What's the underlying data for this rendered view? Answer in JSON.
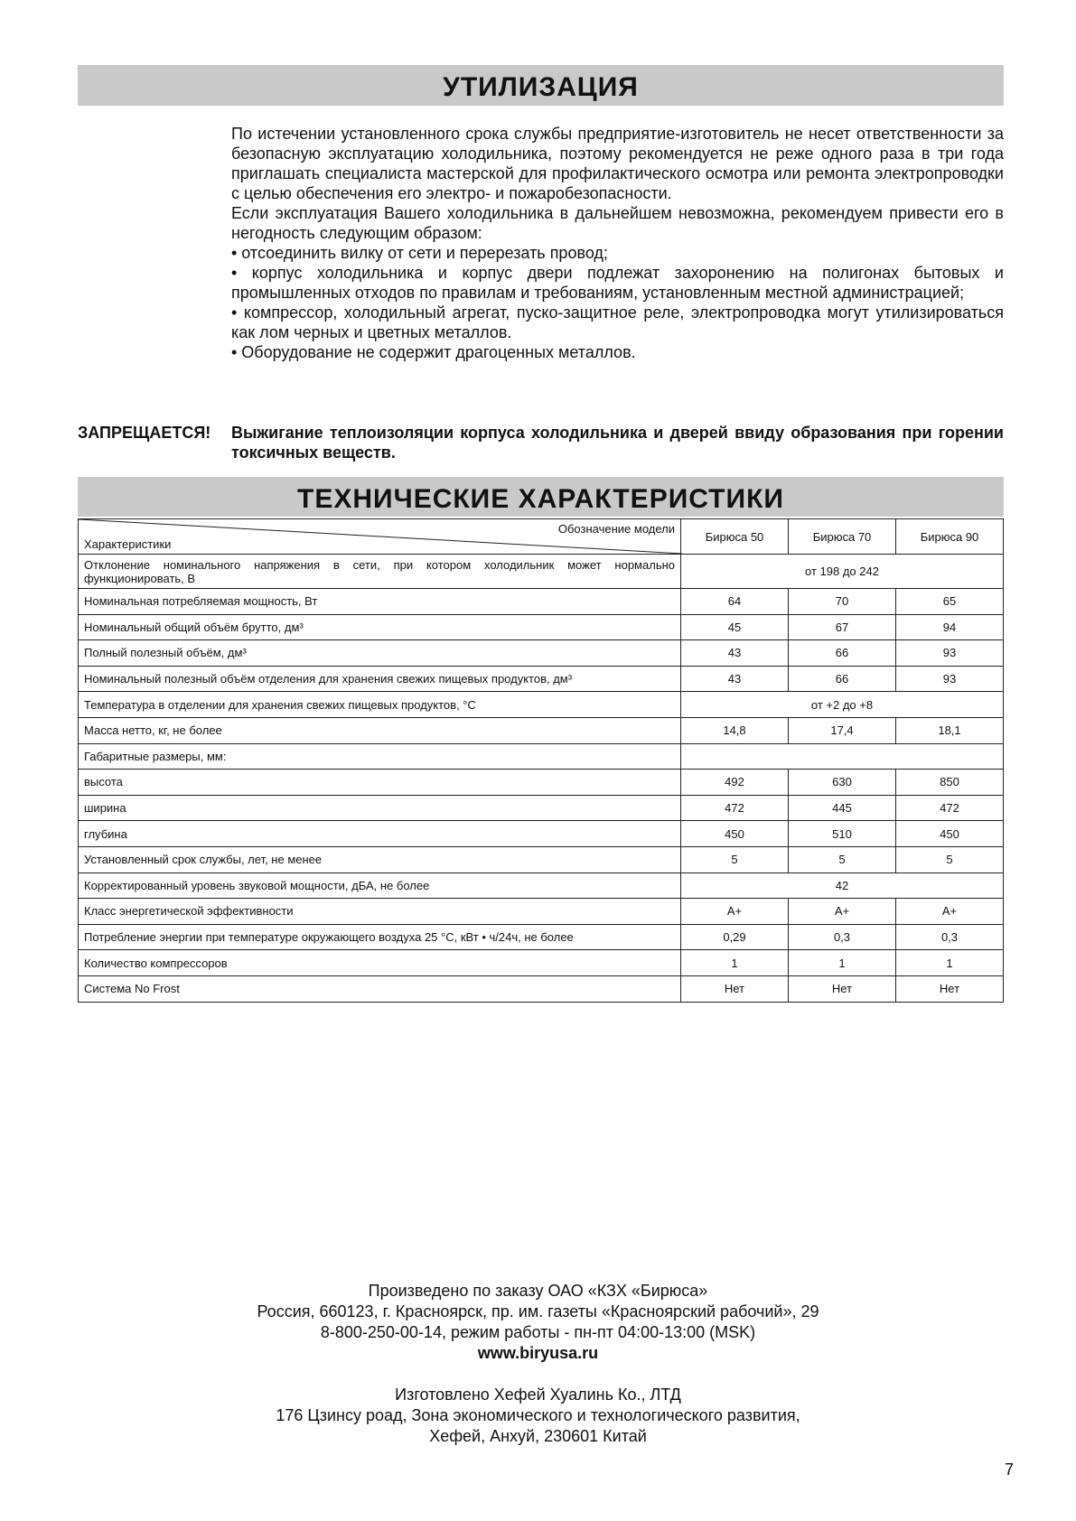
{
  "utilization": {
    "title": "УТИЛИЗАЦИЯ",
    "paragraphs": [
      "По истечении установленного срока службы предприятие-изготовитель не несет ответственности за безопасную эксплуатацию холодильника, поэтому рекомендуется не реже одного раза в три года приглашать специалиста мастерской для профилактического осмотра или ремонта электропроводки с целью обеспечения его электро- и пожаробезопасности.",
      "Если эксплуатация Вашего холодильника в дальнейшем невозможна, рекомендуем привести его в негодность следующим образом:",
      "• отсоединить вилку от сети и перерезать провод;",
      "• корпус холодильника и корпус двери подлежат захоронению на полигонах бытовых и промышленных отходов по правилам и требованиям, установленным местной администрацией;",
      "• компрессор, холодильный агрегат, пуско-защитное реле, электропроводка могут утилизироваться как лом черных и цветных металлов.",
      "• Оборудование не содержит драгоценных металлов."
    ],
    "warning_label": "ЗАПРЕЩАЕТСЯ!",
    "warning_text": "Выжигание теплоизоляции корпуса холодильника и дверей ввиду образования при горении токсичных веществ."
  },
  "specs": {
    "title": "ТЕХНИЧЕСКИЕ ХАРАКТЕРИСТИКИ",
    "header_model": "Обозначение модели",
    "header_char": "Характеристики",
    "models": [
      "Бирюса 50",
      "Бирюса 70",
      "Бирюса 90"
    ],
    "rows": [
      {
        "label": "Отклонение номинального напряжения в сети, при котором холодильник может нормально функционировать, В",
        "merged": "от 198 до 242"
      },
      {
        "label": "Номинальная потребляемая мощность, Вт",
        "values": [
          "64",
          "70",
          "65"
        ]
      },
      {
        "label": "Номинальный общий объём брутто, дм³",
        "values": [
          "45",
          "67",
          "94"
        ]
      },
      {
        "label": "Полный полезный объём, дм³",
        "values": [
          "43",
          "66",
          "93"
        ]
      },
      {
        "label": "Номинальный полезный объём отделения для хранения свежих пищевых продуктов, дм³",
        "values": [
          "43",
          "66",
          "93"
        ]
      },
      {
        "label": "Температура в отделении для хранения свежих пищевых продуктов, °С",
        "merged": "от +2 до +8"
      },
      {
        "label": "Масса нетто, кг, не более",
        "values": [
          "14,8",
          "17,4",
          "18,1"
        ]
      },
      {
        "label": "Габаритные размеры, мм:",
        "merged": ""
      },
      {
        "label": "высота",
        "values": [
          "492",
          "630",
          "850"
        ]
      },
      {
        "label": "ширина",
        "values": [
          "472",
          "445",
          "472"
        ]
      },
      {
        "label": "глубина",
        "values": [
          "450",
          "510",
          "450"
        ]
      },
      {
        "label": "Установленный срок службы, лет, не менее",
        "values": [
          "5",
          "5",
          "5"
        ]
      },
      {
        "label": "Корректированный уровень звуковой мощности, дБА, не более",
        "merged": "42"
      },
      {
        "label": "Класс энергетической эффективности",
        "values": [
          "A+",
          "A+",
          "A+"
        ]
      },
      {
        "label": "Потребление энергии при температуре окружающего воздуха 25 °С, кВт • ч/24ч, не более",
        "values": [
          "0,29",
          "0,3",
          "0,3"
        ]
      },
      {
        "label": "Количество компрессоров",
        "values": [
          "1",
          "1",
          "1"
        ]
      },
      {
        "label": "Система No Frost",
        "values": [
          "Нет",
          "Нет",
          "Нет"
        ]
      }
    ]
  },
  "footer": {
    "lines": [
      "Произведено по заказу ОАО «КЗХ «Бирюса»",
      "Россия, 660123, г. Красноярск, пр. им. газеты «Красноярский рабочий», 29",
      "8-800-250-00-14, режим работы - пн-пт 04:00-13:00 (MSK)"
    ],
    "url": "www.biryusa.ru",
    "maker_lines": [
      "Изготовлено Хефей Хуалинь Ко., ЛТД",
      "176 Цзинсу роад, Зона экономического и технологического развития,",
      "Хефей, Анхуй, 230601 Китай"
    ]
  },
  "page_number": "7"
}
